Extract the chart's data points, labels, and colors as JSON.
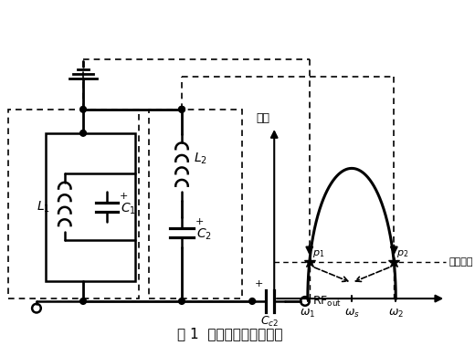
{
  "title": "图 1  传统的输出匹配网络",
  "bg_color": "#ffffff"
}
